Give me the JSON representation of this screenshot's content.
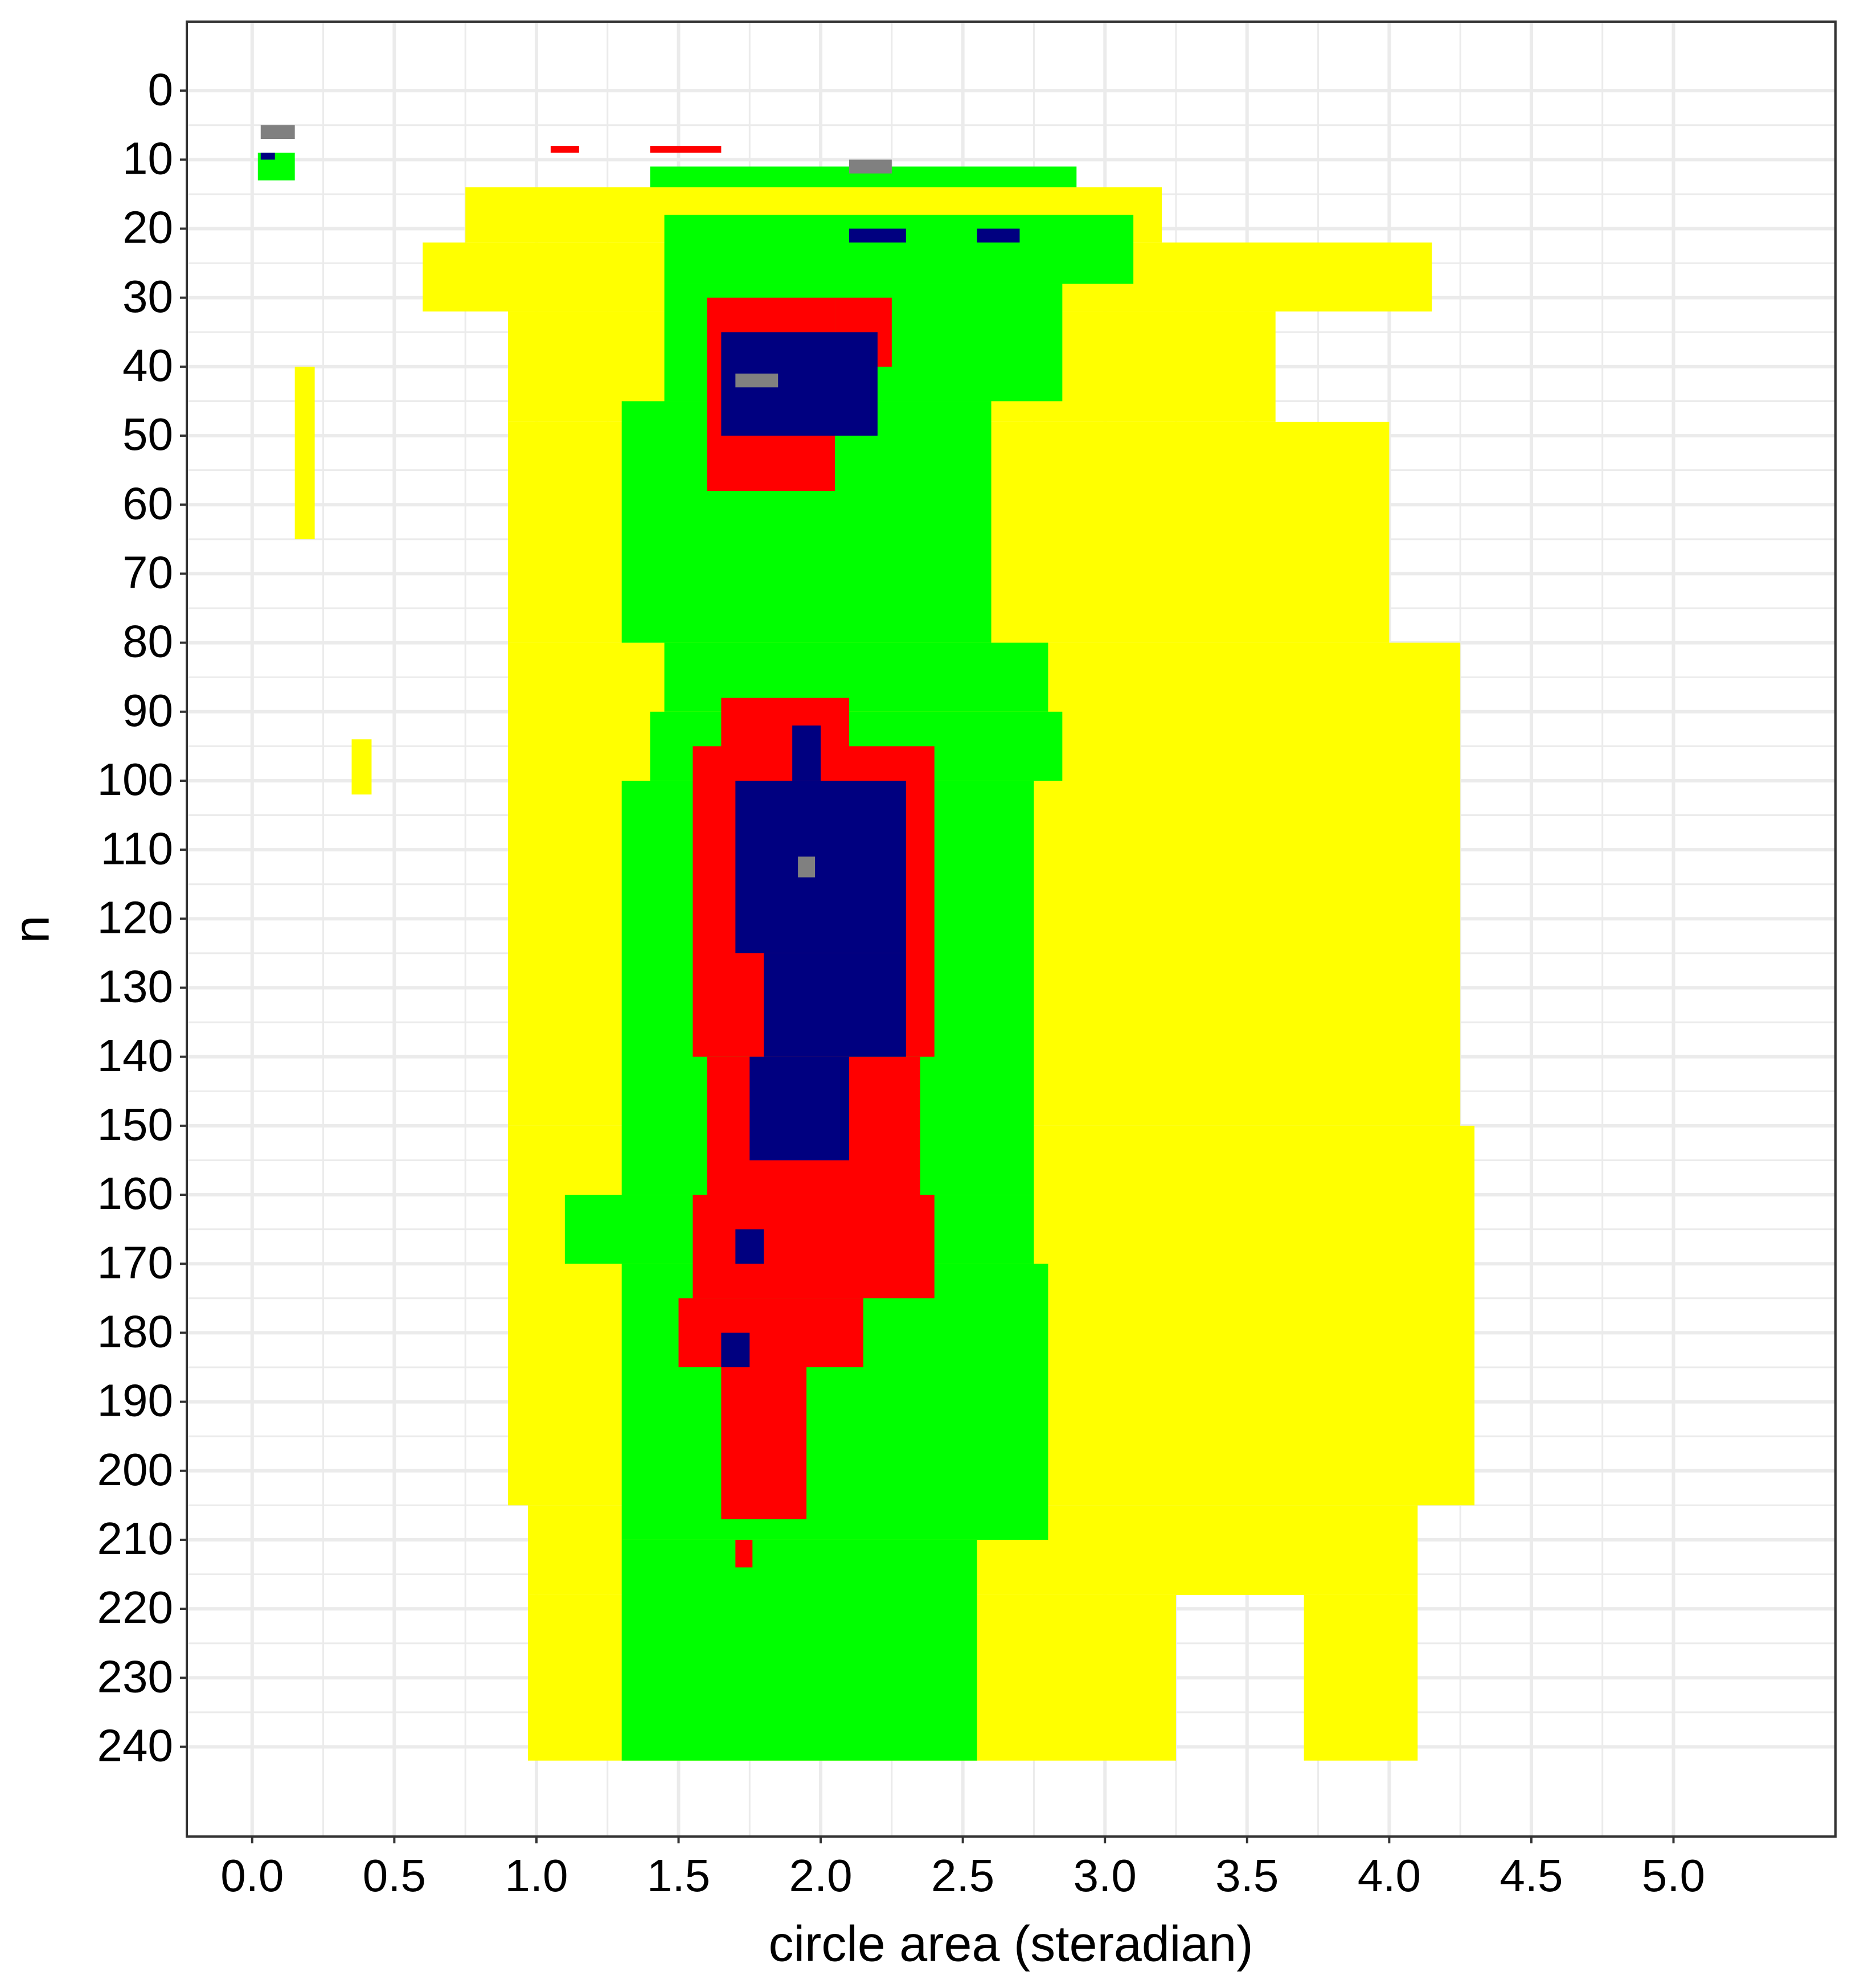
{
  "chart_data": {
    "type": "heatmap",
    "xlabel": "circle area (steradian)",
    "ylabel": "n",
    "xlim": [
      -0.23,
      5.57
    ],
    "ylim": [
      -10,
      253
    ],
    "y_reversed": true,
    "grid": true,
    "xticks": [
      {
        "value": 0,
        "label": "0.0"
      },
      0.5,
      {
        "value": 1,
        "label": "1.0"
      },
      1.5,
      {
        "value": 2,
        "label": "2.0"
      },
      2.5,
      {
        "value": 3,
        "label": "3.0"
      },
      3.5,
      {
        "value": 4,
        "label": "4.0"
      },
      4.5,
      {
        "value": 5,
        "label": "5.0"
      }
    ],
    "yticks": [
      0,
      10,
      20,
      30,
      40,
      50,
      60,
      70,
      80,
      90,
      100,
      110,
      120,
      130,
      140,
      150,
      160,
      170,
      180,
      190,
      200,
      210,
      220,
      230,
      240
    ],
    "series": [
      {
        "color": "#ffff00",
        "rects": [
          [
            0.75,
            3.2,
            14,
            22
          ],
          [
            0.6,
            4.15,
            22,
            32
          ],
          [
            0.9,
            3.6,
            32,
            48
          ],
          [
            0.15,
            0.22,
            40,
            65
          ],
          [
            0.9,
            4.0,
            48,
            80
          ],
          [
            0.35,
            0.42,
            94,
            102
          ],
          [
            0.9,
            4.25,
            80,
            150
          ],
          [
            0.9,
            4.3,
            150,
            205
          ],
          [
            0.97,
            4.1,
            205,
            218
          ],
          [
            0.97,
            3.25,
            218,
            242
          ],
          [
            3.7,
            4.1,
            218,
            242
          ]
        ]
      },
      {
        "color": "#00ff00",
        "rects": [
          [
            0.02,
            0.15,
            9,
            13
          ],
          [
            1.4,
            2.9,
            11,
            14
          ],
          [
            1.45,
            3.1,
            18,
            28
          ],
          [
            1.45,
            2.85,
            28,
            45
          ],
          [
            1.3,
            2.6,
            45,
            80
          ],
          [
            1.45,
            2.8,
            80,
            90
          ],
          [
            1.4,
            2.85,
            90,
            100
          ],
          [
            1.3,
            2.75,
            100,
            160
          ],
          [
            1.1,
            2.75,
            160,
            170
          ],
          [
            1.3,
            2.8,
            170,
            210
          ],
          [
            1.3,
            2.55,
            210,
            242
          ]
        ]
      },
      {
        "color": "#ff0000",
        "rects": [
          [
            1.05,
            1.15,
            8,
            9
          ],
          [
            1.4,
            1.65,
            8,
            9
          ],
          [
            1.6,
            2.05,
            30,
            58
          ],
          [
            2.05,
            2.25,
            30,
            40
          ],
          [
            1.65,
            2.1,
            88,
            100
          ],
          [
            1.55,
            2.4,
            95,
            140
          ],
          [
            1.6,
            2.35,
            140,
            160
          ],
          [
            1.55,
            2.4,
            160,
            175
          ],
          [
            1.5,
            2.15,
            175,
            185
          ],
          [
            1.65,
            1.95,
            185,
            207
          ],
          [
            1.7,
            1.76,
            210,
            214
          ]
        ]
      },
      {
        "color": "#000080",
        "rects": [
          [
            0.03,
            0.08,
            9,
            10
          ],
          [
            2.1,
            2.3,
            20,
            22
          ],
          [
            2.55,
            2.7,
            20,
            22
          ],
          [
            1.65,
            2.2,
            35,
            50
          ],
          [
            1.9,
            2.0,
            92,
            100
          ],
          [
            1.7,
            2.3,
            100,
            125
          ],
          [
            1.8,
            2.3,
            125,
            140
          ],
          [
            1.75,
            2.1,
            140,
            155
          ],
          [
            1.7,
            1.8,
            165,
            170
          ],
          [
            1.65,
            1.75,
            180,
            185
          ]
        ]
      },
      {
        "color": "#808080",
        "rects": [
          [
            0.03,
            0.15,
            5,
            7
          ],
          [
            2.1,
            2.25,
            10,
            12
          ],
          [
            1.7,
            1.85,
            41,
            43
          ],
          [
            1.92,
            1.98,
            111,
            114
          ]
        ]
      }
    ]
  }
}
